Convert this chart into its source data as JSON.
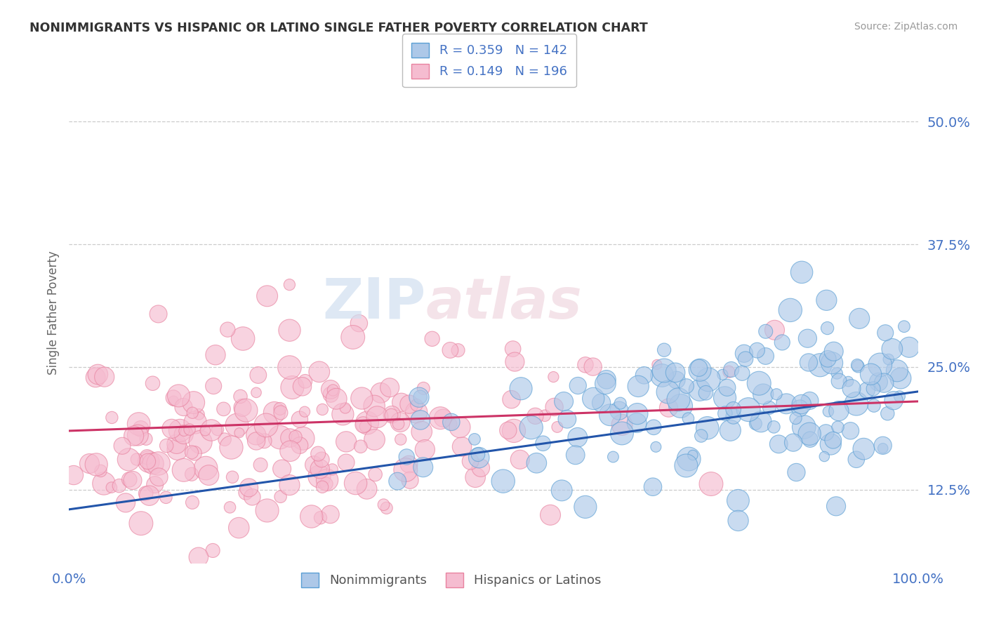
{
  "title": "NONIMMIGRANTS VS HISPANIC OR LATINO SINGLE FATHER POVERTY CORRELATION CHART",
  "source": "Source: ZipAtlas.com",
  "ylabel": "Single Father Poverty",
  "x_min": 0.0,
  "x_max": 1.0,
  "y_min": 0.05,
  "y_max": 0.56,
  "y_ticks": [
    0.125,
    0.25,
    0.375,
    0.5
  ],
  "y_tick_labels": [
    "12.5%",
    "25.0%",
    "37.5%",
    "50.0%"
  ],
  "x_ticks": [
    0.0,
    1.0
  ],
  "x_tick_labels": [
    "0.0%",
    "100.0%"
  ],
  "blue_R": 0.359,
  "blue_N": 142,
  "pink_R": 0.149,
  "pink_N": 196,
  "blue_color": "#adc8e8",
  "blue_edge": "#5a9fd4",
  "pink_color": "#f5bcd0",
  "pink_edge": "#e8829f",
  "blue_line_color": "#2255aa",
  "pink_line_color": "#cc3366",
  "legend_label_blue": "Nonimmigrants",
  "legend_label_pink": "Hispanics or Latinos",
  "watermark_zip": "ZIP",
  "watermark_atlas": "atlas",
  "background_color": "#ffffff",
  "grid_color": "#cccccc",
  "title_color": "#333333",
  "axis_label_color": "#4472c4",
  "seed": 7
}
